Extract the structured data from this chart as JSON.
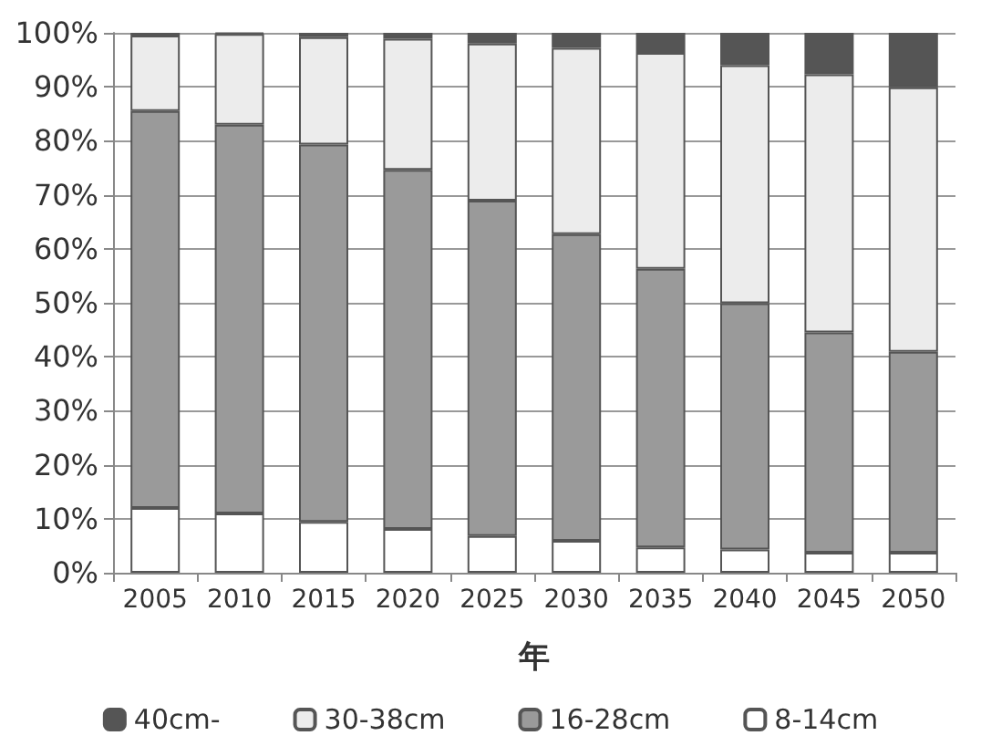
{
  "chart_data": {
    "type": "bar",
    "stacked": true,
    "xlabel": "年",
    "categories": [
      "2005",
      "2010",
      "2015",
      "2020",
      "2025",
      "2030",
      "2035",
      "2040",
      "2045",
      "2050"
    ],
    "series": [
      {
        "name": "8-14cm",
        "color": "#ffffff",
        "values": [
          12,
          11,
          9.4,
          8.1,
          6.8,
          5.9,
          4.7,
          4.3,
          3.7,
          3.7
        ]
      },
      {
        "name": "16-28cm",
        "color": "#9a9a9a",
        "values": [
          73.5,
          72,
          69.9,
          66.5,
          62.1,
          56.8,
          51.6,
          45.6,
          40.8,
          37.2
        ]
      },
      {
        "name": "30-38cm",
        "color": "#ececec",
        "values": [
          14,
          16.8,
          19.9,
          24.3,
          29.1,
          34.5,
          40,
          44.1,
          47.8,
          49
        ]
      },
      {
        "name": "40cm-",
        "color": "#555555",
        "values": [
          0.5,
          0.2,
          0.8,
          1.1,
          2,
          2.8,
          3.7,
          6,
          7.7,
          10.1
        ]
      }
    ],
    "ylim": [
      0,
      100
    ],
    "yticks": [
      {
        "value": 0,
        "label": "0%"
      },
      {
        "value": 10,
        "label": "10%"
      },
      {
        "value": 20,
        "label": "20%"
      },
      {
        "value": 30,
        "label": "30%"
      },
      {
        "value": 40,
        "label": "40%"
      },
      {
        "value": 50,
        "label": "50%"
      },
      {
        "value": 60,
        "label": "60%"
      },
      {
        "value": 70,
        "label": "70%"
      },
      {
        "value": 80,
        "label": "80%"
      },
      {
        "value": 90,
        "label": "90%"
      },
      {
        "value": 100,
        "label": "100%"
      }
    ],
    "grid": "y",
    "legend": "bottom"
  }
}
